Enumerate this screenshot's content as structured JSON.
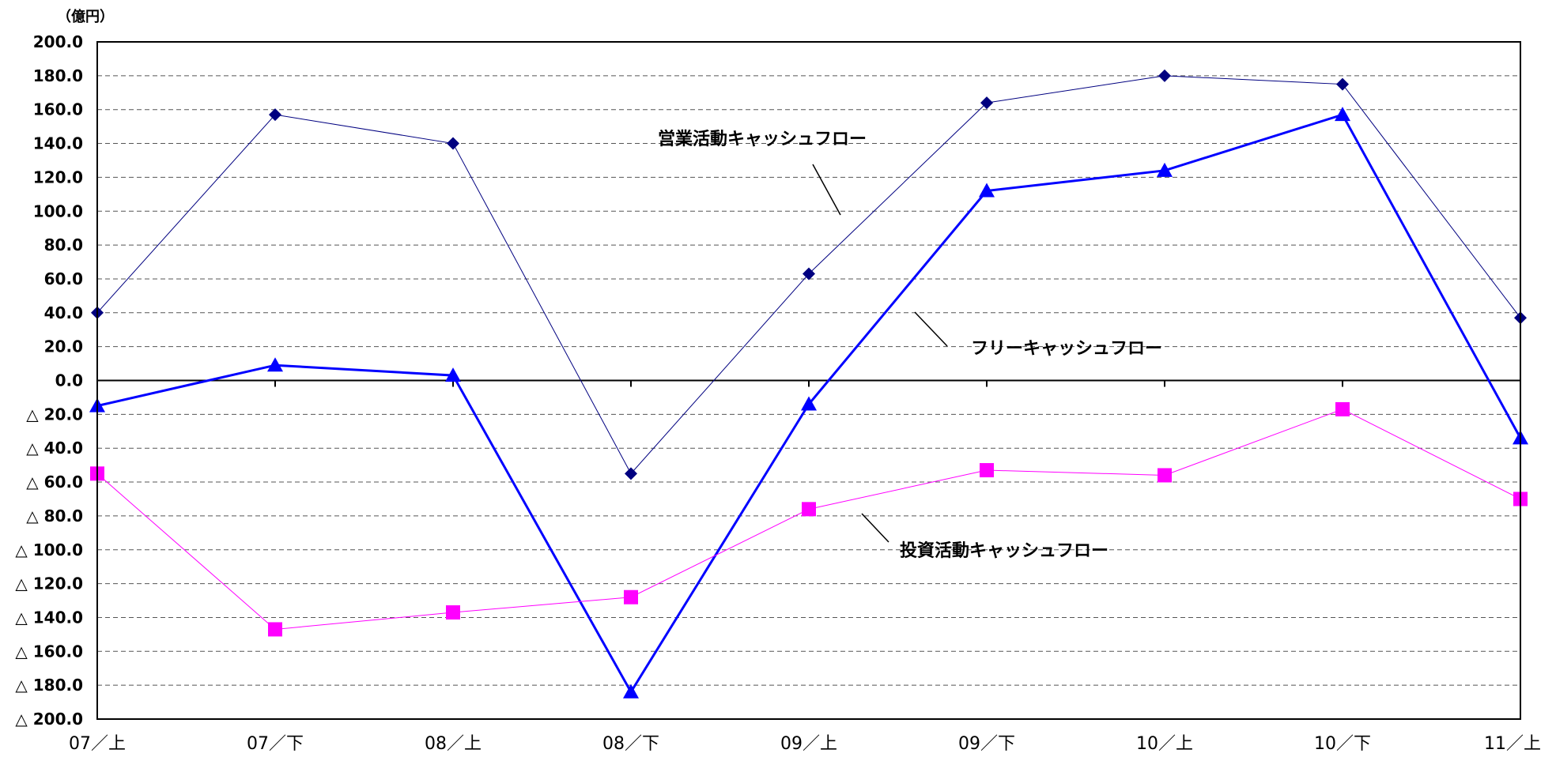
{
  "chart_data": {
    "type": "line",
    "unit_label": "（億円）",
    "categories": [
      "07／上",
      "07／下",
      "08／上",
      "08／下",
      "09／上",
      "09／下",
      "10／上",
      "10／下",
      "11／上"
    ],
    "ylim": [
      -200,
      200
    ],
    "y_ticks": [
      200,
      180,
      160,
      140,
      120,
      100,
      80,
      60,
      40,
      20,
      0,
      -20,
      -40,
      -60,
      -80,
      -100,
      -120,
      -140,
      -160,
      -180,
      -200
    ],
    "y_tick_labels": [
      "200.0",
      "180.0",
      "160.0",
      "140.0",
      "120.0",
      "100.0",
      "80.0",
      "60.0",
      "40.0",
      "20.0",
      "0.0",
      "△ 20.0",
      "△ 40.0",
      "△ 60.0",
      "△ 80.0",
      "△ 100.0",
      "△ 120.0",
      "△ 140.0",
      "△ 160.0",
      "△ 180.0",
      "△ 200.0"
    ],
    "grid": true,
    "series": [
      {
        "name": "営業活動キャッシュフロー",
        "color": "#000080",
        "marker": "diamond",
        "values": [
          40,
          157,
          140,
          -55,
          63,
          164,
          180,
          175,
          37
        ]
      },
      {
        "name": "フリーキャッシュフロー",
        "color": "#0000FF",
        "marker": "triangle",
        "values": [
          -15,
          9,
          3,
          -184,
          -14,
          112,
          124,
          157,
          -34
        ]
      },
      {
        "name": "投資活動キャッシュフロー",
        "color": "#FF00FF",
        "marker": "square",
        "values": [
          -55,
          -147,
          -137,
          -128,
          -76,
          -53,
          -56,
          -17,
          -70
        ]
      }
    ]
  }
}
